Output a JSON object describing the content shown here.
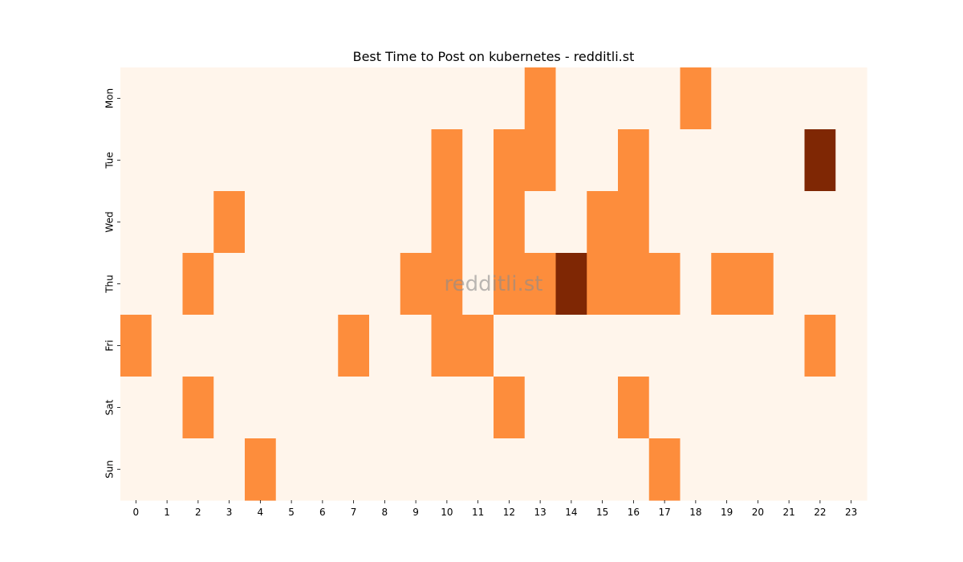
{
  "chart_data": {
    "type": "heatmap",
    "title": "Best Time to Post on kubernetes - redditli.st",
    "watermark": "redditli.st",
    "xlabel": "",
    "ylabel": "",
    "x": [
      "0",
      "1",
      "2",
      "3",
      "4",
      "5",
      "6",
      "7",
      "8",
      "9",
      "10",
      "11",
      "12",
      "13",
      "14",
      "15",
      "16",
      "17",
      "18",
      "19",
      "20",
      "21",
      "22",
      "23"
    ],
    "y": [
      "Mon",
      "Tue",
      "Wed",
      "Thu",
      "Fri",
      "Sat",
      "Sun"
    ],
    "values": [
      [
        0,
        0,
        0,
        0,
        0,
        0,
        0,
        0,
        0,
        0,
        0,
        0,
        0,
        1,
        0,
        0,
        0,
        0,
        1,
        0,
        0,
        0,
        0,
        0
      ],
      [
        0,
        0,
        0,
        0,
        0,
        0,
        0,
        0,
        0,
        0,
        1,
        0,
        1,
        1,
        0,
        0,
        1,
        0,
        0,
        0,
        0,
        0,
        2,
        0
      ],
      [
        0,
        0,
        0,
        1,
        0,
        0,
        0,
        0,
        0,
        0,
        1,
        0,
        1,
        0,
        0,
        1,
        1,
        0,
        0,
        0,
        0,
        0,
        0,
        0
      ],
      [
        0,
        0,
        1,
        0,
        0,
        0,
        0,
        0,
        0,
        1,
        1,
        0,
        1,
        1,
        2,
        1,
        1,
        1,
        0,
        1,
        1,
        0,
        0,
        0
      ],
      [
        1,
        0,
        0,
        0,
        0,
        0,
        0,
        1,
        0,
        0,
        1,
        1,
        0,
        0,
        0,
        0,
        0,
        0,
        0,
        0,
        0,
        0,
        1,
        0
      ],
      [
        0,
        0,
        1,
        0,
        0,
        0,
        0,
        0,
        0,
        0,
        0,
        0,
        1,
        0,
        0,
        0,
        1,
        0,
        0,
        0,
        0,
        0,
        0,
        0
      ],
      [
        0,
        0,
        0,
        0,
        1,
        0,
        0,
        0,
        0,
        0,
        0,
        0,
        0,
        0,
        0,
        0,
        0,
        1,
        0,
        0,
        0,
        0,
        0,
        0
      ]
    ],
    "colorscale": [
      "#fff5eb",
      "#fd8d3c",
      "#7f2704"
    ],
    "colorbar": false
  }
}
